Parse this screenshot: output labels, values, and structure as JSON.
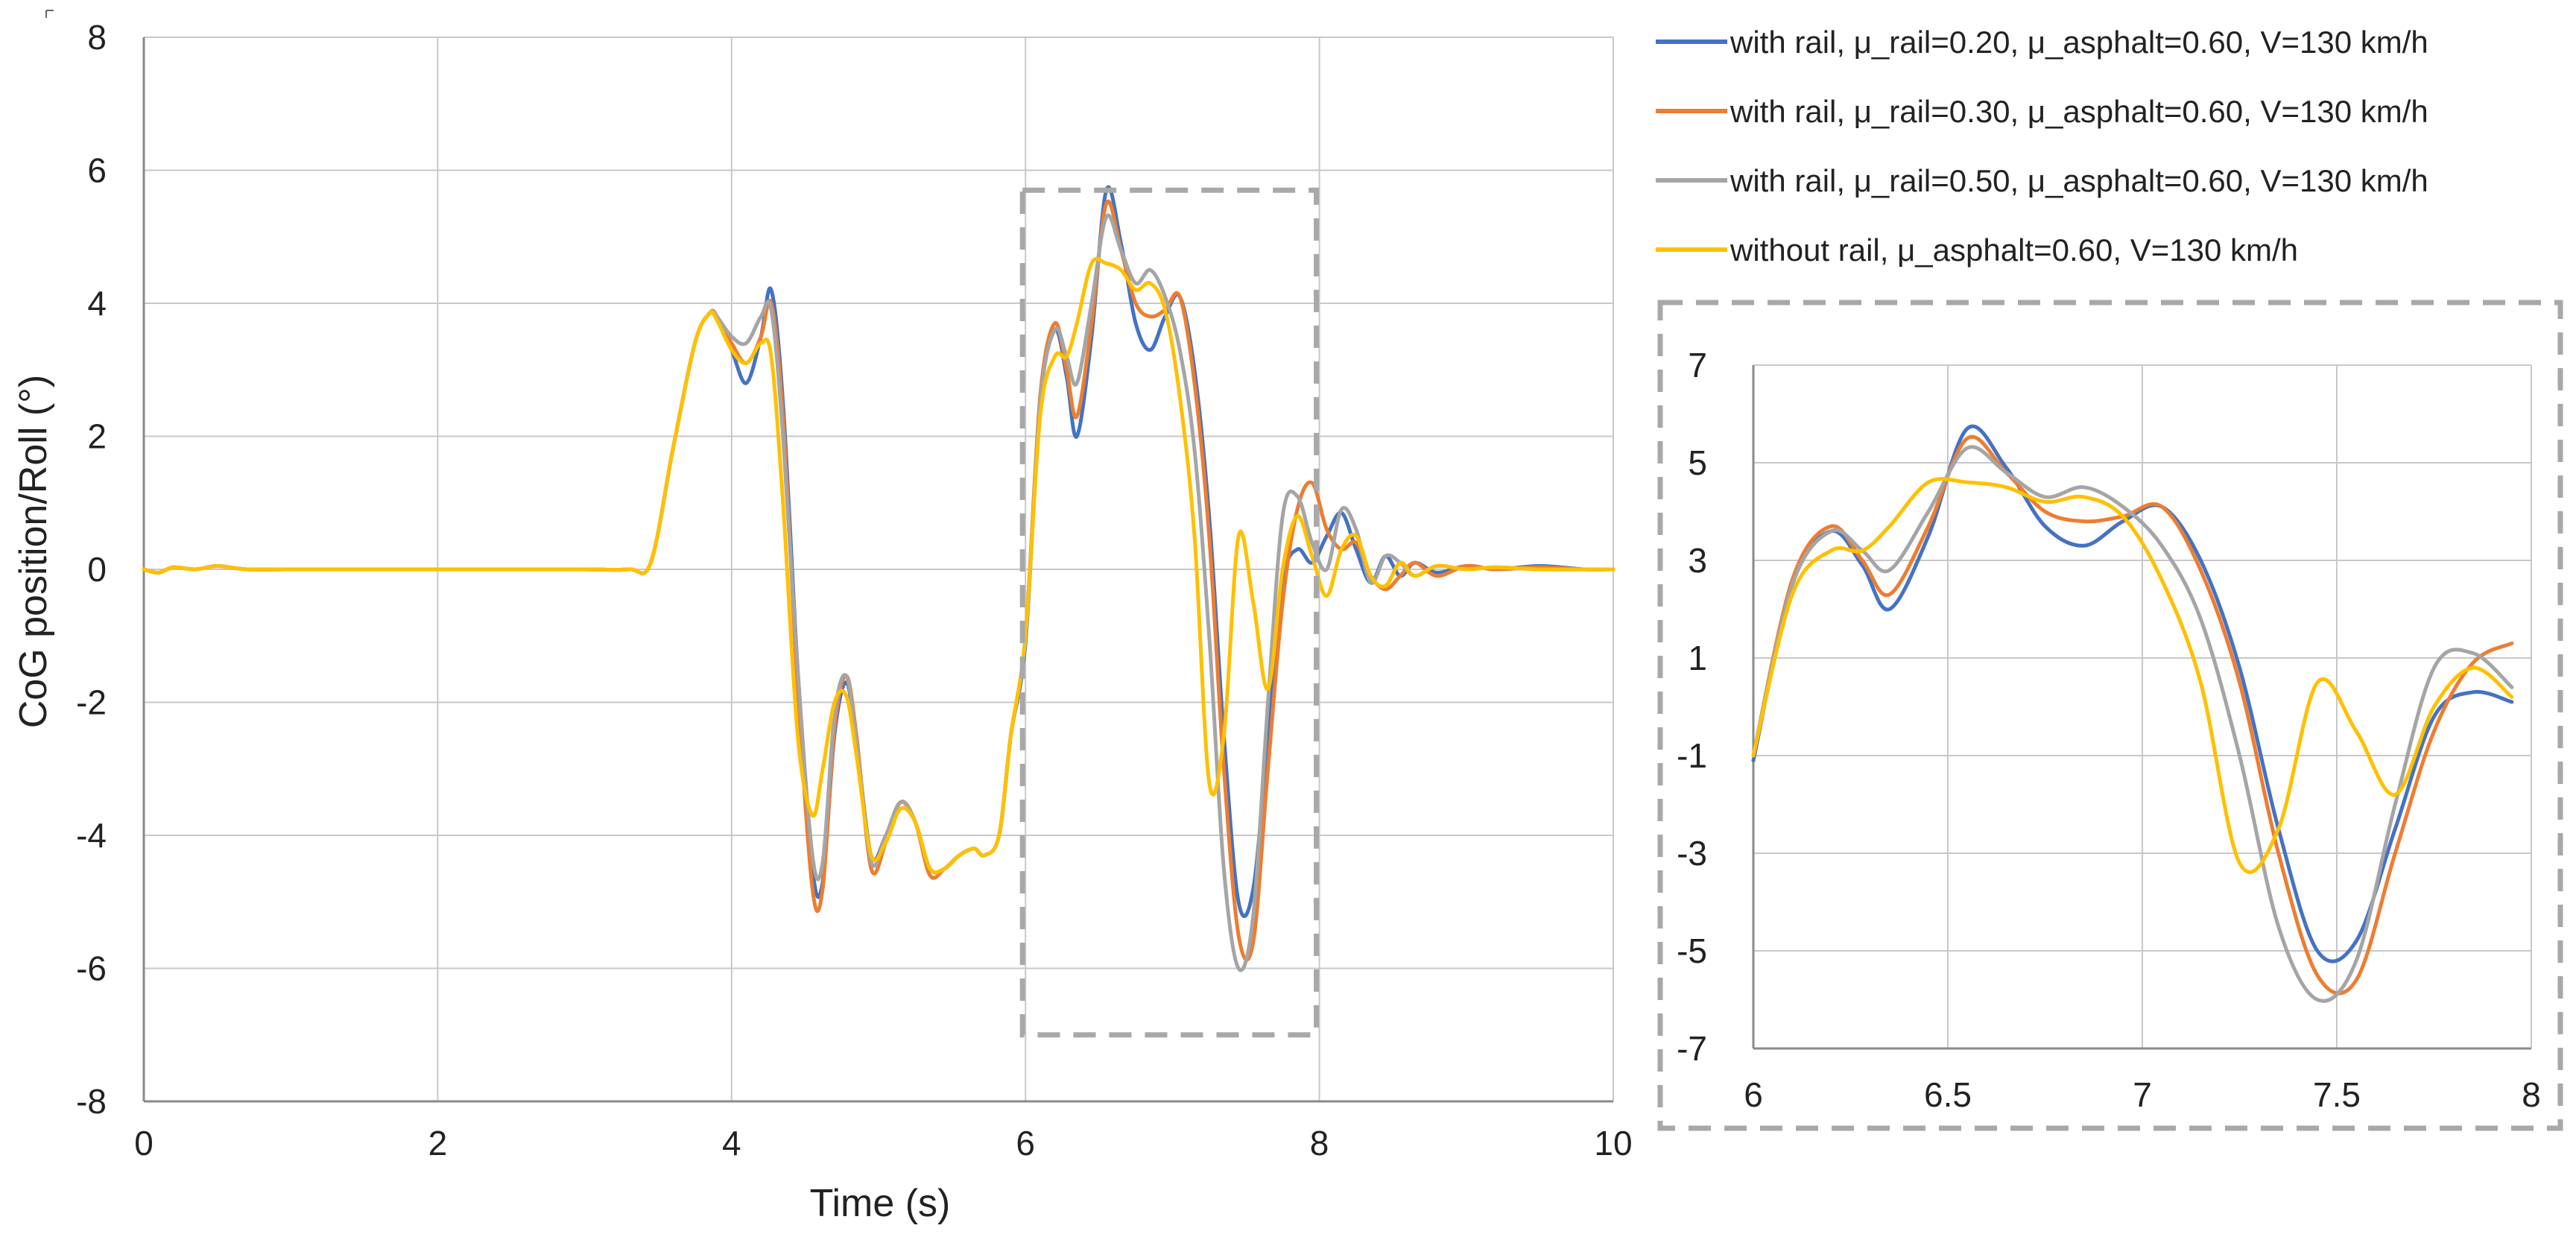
{
  "colors": {
    "series_1": "#4472c4",
    "series_2": "#ed7d31",
    "series_3": "#a5a5a5",
    "series_4": "#ffc000",
    "zoom_box": "#a8a8a8"
  },
  "chart_data": [
    {
      "id": "main",
      "type": "line",
      "title": "",
      "xlabel": "Time  (s)",
      "ylabel": "CoG position/Roll (°)",
      "xlim": [
        0,
        10
      ],
      "ylim": [
        -8,
        8
      ],
      "xticks": [
        0,
        2,
        4,
        6,
        8,
        10
      ],
      "yticks": [
        8,
        6,
        4,
        2,
        0,
        -2,
        -4,
        -6,
        -8
      ],
      "grid": true,
      "zoom_region": {
        "x": [
          6,
          8
        ],
        "y": [
          -7,
          5.7
        ]
      },
      "series": [
        {
          "name": "with rail, μ_rail=0.20, μ_asphalt=0.60, V=130 km/h",
          "x": [
            0,
            0.1,
            0.2,
            0.35,
            0.5,
            0.7,
            1,
            1.5,
            2,
            2.5,
            3,
            3.3,
            3.45,
            3.6,
            3.75,
            3.85,
            3.9,
            4,
            4.1,
            4.2,
            4.27,
            4.35,
            4.45,
            4.55,
            4.62,
            4.7,
            4.78,
            4.85,
            4.95,
            5.05,
            5.15,
            5.25,
            5.35,
            5.45,
            5.55,
            5.65,
            5.72,
            5.82,
            5.9,
            6,
            6.1,
            6.2,
            6.28,
            6.35,
            6.45,
            6.55,
            6.65,
            6.75,
            6.85,
            6.95,
            7.05,
            7.15,
            7.25,
            7.35,
            7.45,
            7.55,
            7.65,
            7.75,
            7.85,
            7.95,
            8.05,
            8.15,
            8.25,
            8.35,
            8.45,
            8.55,
            8.65,
            8.8,
            9,
            9.2,
            9.5,
            9.8,
            10
          ],
          "y": [
            0,
            -0.05,
            0.03,
            0,
            0.05,
            0,
            0,
            0,
            0,
            0,
            0,
            0,
            0.1,
            1.8,
            3.4,
            3.85,
            3.8,
            3.3,
            2.8,
            3.5,
            4.2,
            2.5,
            -1.5,
            -4.5,
            -4.7,
            -2.5,
            -1.7,
            -2.6,
            -4.3,
            -4.0,
            -3.5,
            -3.8,
            -4.5,
            -4.5,
            -4.3,
            -4.2,
            -4.3,
            -4.0,
            -2.5,
            -1.1,
            2.5,
            3.6,
            2.9,
            2.0,
            3.5,
            5.7,
            4.9,
            3.7,
            3.3,
            3.8,
            4.1,
            3.0,
            0.8,
            -2.5,
            -5.0,
            -4.8,
            -2.5,
            -0.2,
            0.3,
            0.1,
            0.5,
            0.85,
            0.3,
            -0.2,
            0.2,
            -0.1,
            0.1,
            -0.05,
            0.05,
            0,
            0.05,
            0,
            0
          ]
        },
        {
          "name": "with rail, μ_rail=0.30, μ_asphalt=0.60, V=130 km/h",
          "x": [
            0,
            0.1,
            0.2,
            0.35,
            0.5,
            0.7,
            1,
            1.5,
            2,
            2.5,
            3,
            3.3,
            3.45,
            3.6,
            3.75,
            3.85,
            3.9,
            4,
            4.1,
            4.2,
            4.27,
            4.35,
            4.45,
            4.55,
            4.62,
            4.7,
            4.78,
            4.85,
            4.95,
            5.05,
            5.15,
            5.25,
            5.35,
            5.45,
            5.55,
            5.65,
            5.72,
            5.82,
            5.9,
            6,
            6.1,
            6.2,
            6.28,
            6.35,
            6.45,
            6.55,
            6.65,
            6.75,
            6.85,
            6.95,
            7.05,
            7.15,
            7.25,
            7.35,
            7.45,
            7.55,
            7.65,
            7.75,
            7.85,
            7.95,
            8.05,
            8.15,
            8.25,
            8.35,
            8.45,
            8.55,
            8.65,
            8.8,
            9,
            9.2,
            9.5,
            9.8,
            10
          ],
          "y": [
            0,
            -0.05,
            0.03,
            0,
            0.05,
            0,
            0,
            0,
            0,
            0,
            0,
            0,
            0.1,
            1.8,
            3.4,
            3.85,
            3.8,
            3.4,
            3.1,
            3.5,
            4.0,
            2.3,
            -1.8,
            -4.8,
            -4.8,
            -2.4,
            -1.6,
            -2.5,
            -4.5,
            -4.1,
            -3.5,
            -3.8,
            -4.6,
            -4.5,
            -4.3,
            -4.2,
            -4.3,
            -4.0,
            -2.5,
            -1.0,
            2.6,
            3.7,
            3.0,
            2.3,
            3.7,
            5.5,
            4.8,
            4.0,
            3.8,
            3.9,
            4.1,
            2.8,
            0.5,
            -3.0,
            -5.5,
            -5.6,
            -3.0,
            -0.5,
            0.9,
            1.3,
            0.6,
            0.3,
            0.4,
            -0.1,
            -0.3,
            -0.1,
            0.1,
            -0.1,
            0.05,
            0,
            0.03,
            0,
            0
          ]
        },
        {
          "name": "with rail, μ_rail=0.50, μ_asphalt=0.60, V=130 km/h",
          "x": [
            0,
            0.1,
            0.2,
            0.35,
            0.5,
            0.7,
            1,
            1.5,
            2,
            2.5,
            3,
            3.3,
            3.45,
            3.6,
            3.75,
            3.85,
            3.9,
            4,
            4.1,
            4.2,
            4.27,
            4.35,
            4.45,
            4.55,
            4.62,
            4.7,
            4.78,
            4.85,
            4.95,
            5.05,
            5.15,
            5.25,
            5.35,
            5.45,
            5.55,
            5.65,
            5.72,
            5.82,
            5.9,
            6,
            6.1,
            6.2,
            6.28,
            6.35,
            6.45,
            6.55,
            6.65,
            6.75,
            6.85,
            6.95,
            7.05,
            7.15,
            7.25,
            7.35,
            7.45,
            7.55,
            7.65,
            7.75,
            7.85,
            7.95,
            8.05,
            8.15,
            8.25,
            8.35,
            8.45,
            8.55,
            8.65,
            8.8,
            9,
            9.2,
            9.5,
            9.8,
            10
          ],
          "y": [
            0,
            -0.05,
            0.03,
            0,
            0.05,
            0,
            0,
            0,
            0,
            0,
            0,
            0,
            0.1,
            1.8,
            3.4,
            3.85,
            3.8,
            3.5,
            3.4,
            3.8,
            3.9,
            2.0,
            -1.5,
            -4.3,
            -4.4,
            -2.2,
            -1.6,
            -2.6,
            -4.4,
            -4.0,
            -3.5,
            -3.8,
            -4.5,
            -4.5,
            -4.3,
            -4.2,
            -4.3,
            -4.0,
            -2.5,
            -1.0,
            2.5,
            3.6,
            3.2,
            2.8,
            4.0,
            5.3,
            4.8,
            4.3,
            4.5,
            4.1,
            3.3,
            1.8,
            -1.0,
            -4.5,
            -6.0,
            -5.2,
            -2.0,
            0.8,
            1.1,
            0.4,
            0.0,
            0.9,
            0.6,
            -0.2,
            0.2,
            0.1,
            -0.1,
            0.05,
            0,
            0.03,
            0,
            0,
            0
          ]
        },
        {
          "name": "without rail, μ_asphalt=0.60, V=130 km/h",
          "x": [
            0,
            0.1,
            0.2,
            0.35,
            0.5,
            0.7,
            1,
            1.5,
            2,
            2.5,
            3,
            3.3,
            3.45,
            3.6,
            3.75,
            3.85,
            3.9,
            4,
            4.1,
            4.2,
            4.27,
            4.35,
            4.45,
            4.55,
            4.62,
            4.7,
            4.78,
            4.85,
            4.95,
            5.05,
            5.15,
            5.25,
            5.35,
            5.45,
            5.55,
            5.65,
            5.72,
            5.82,
            5.9,
            6,
            6.1,
            6.2,
            6.28,
            6.35,
            6.45,
            6.55,
            6.65,
            6.75,
            6.85,
            6.95,
            7.05,
            7.15,
            7.25,
            7.35,
            7.45,
            7.55,
            7.65,
            7.75,
            7.85,
            7.95,
            8.05,
            8.15,
            8.25,
            8.35,
            8.45,
            8.55,
            8.65,
            8.8,
            9,
            9.2,
            9.5,
            9.8,
            10
          ],
          "y": [
            0,
            -0.05,
            0.03,
            0,
            0.05,
            0,
            0,
            0,
            0,
            0,
            0,
            0,
            0.1,
            1.8,
            3.4,
            3.85,
            3.75,
            3.3,
            3.1,
            3.4,
            3.2,
            1.0,
            -2.5,
            -3.7,
            -3.0,
            -2.0,
            -1.9,
            -2.8,
            -4.3,
            -4.1,
            -3.6,
            -3.8,
            -4.5,
            -4.5,
            -4.3,
            -4.2,
            -4.3,
            -4.0,
            -2.5,
            -1.0,
            2.3,
            3.2,
            3.2,
            3.7,
            4.6,
            4.6,
            4.5,
            4.2,
            4.3,
            3.9,
            2.6,
            0.5,
            -3.2,
            -2.5,
            0.5,
            -0.5,
            -1.8,
            0.0,
            0.8,
            0.2,
            -0.4,
            0.3,
            0.5,
            -0.1,
            -0.25,
            0.1,
            -0.1,
            0.05,
            0,
            0.03,
            0,
            0,
            0
          ]
        }
      ]
    },
    {
      "id": "inset",
      "type": "line",
      "title": "",
      "xlabel": "",
      "ylabel": "",
      "xlim": [
        6,
        8
      ],
      "ylim": [
        -7,
        7
      ],
      "xticks": [
        6,
        6.5,
        7,
        7.5,
        8
      ],
      "xtick_labels": [
        "6",
        "6.5",
        "7",
        "7.5",
        "8"
      ],
      "yticks": [
        7,
        5,
        3,
        1,
        -1,
        -3,
        -5,
        -7
      ],
      "grid": true,
      "note": "magnified view of main-chart region 6–8 s"
    }
  ]
}
